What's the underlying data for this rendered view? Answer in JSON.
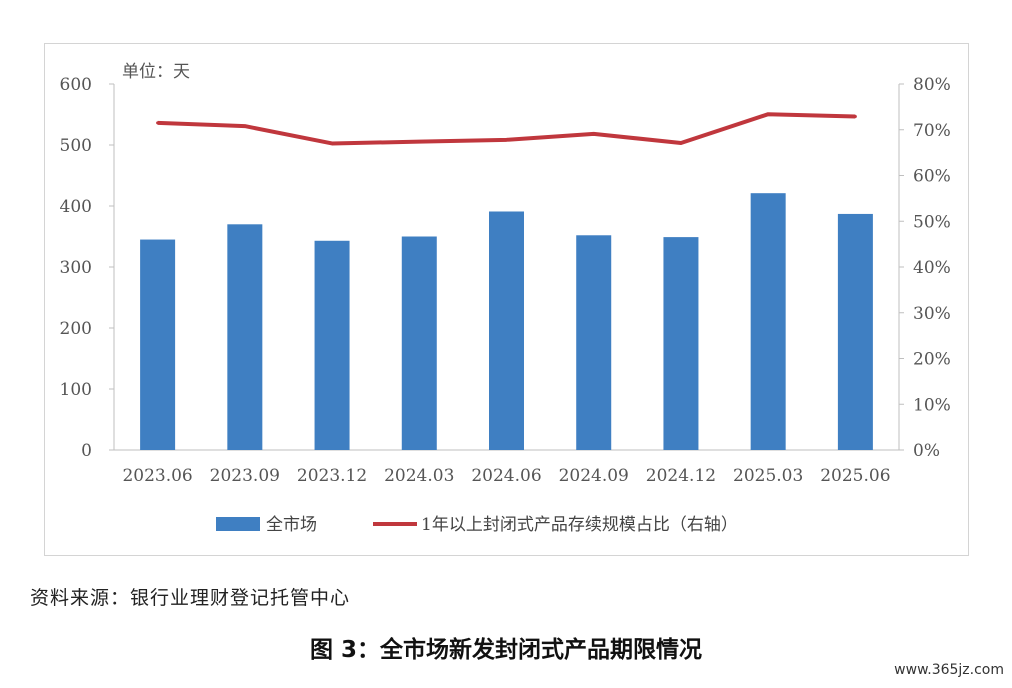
{
  "chart_data": {
    "type": "bar",
    "categories": [
      "2023.06",
      "2023.09",
      "2023.12",
      "2024.03",
      "2024.06",
      "2024.09",
      "2024.12",
      "2025.03",
      "2025.06"
    ],
    "series": [
      {
        "name": "全市场",
        "type": "bar",
        "axis": "left",
        "values": [
          345,
          370,
          343,
          350,
          391,
          352,
          349,
          421,
          387
        ]
      },
      {
        "name": "1年以上封闭式产品存续规模占比（右轴）",
        "type": "line",
        "axis": "right",
        "values": [
          71.5,
          70.8,
          67.0,
          67.4,
          67.8,
          69.1,
          67.1,
          73.4,
          72.9
        ]
      }
    ],
    "ylabel_unit": "单位：天",
    "ylim_left": [
      0,
      600
    ],
    "yticks_left": [
      "0",
      "100",
      "200",
      "300",
      "400",
      "500",
      "600"
    ],
    "ylim_right": [
      0,
      80
    ],
    "yticks_right": [
      "0%",
      "10%",
      "20%",
      "30%",
      "40%",
      "50%",
      "60%",
      "70%",
      "80%"
    ],
    "grid": false,
    "legend_position": "bottom",
    "colors": {
      "bar": "#3f7fc2",
      "line": "#c0373d"
    }
  },
  "source_note": "资料来源：银行业理财登记托管中心",
  "figure_caption": "图 3：全市场新发封闭式产品期限情况",
  "watermark": "www.365jz.com"
}
